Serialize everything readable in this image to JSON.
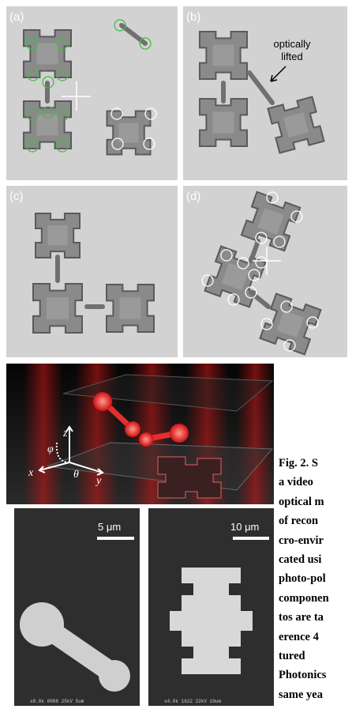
{
  "panels": [
    {
      "label": "(a)"
    },
    {
      "label": "(b)",
      "annotation": [
        "optically",
        "lifted"
      ]
    },
    {
      "label": "(c)"
    },
    {
      "label": "(d)"
    }
  ],
  "render": {
    "axes": {
      "z": "z",
      "phi": "φ",
      "x": "x",
      "theta": "θ",
      "y": "y"
    }
  },
  "sem": [
    {
      "scale": "5 μm",
      "footer": "x8.0k 0008 25kV 5um"
    },
    {
      "scale": "10 μm",
      "footer": "x4.0k 1622 22kV 10um"
    }
  ],
  "caption": {
    "lines": [
      "Fig. 2. S",
      "a video",
      "optical m",
      "of recon",
      "cro-envir",
      "cated usi",
      "photo-pol",
      "componen",
      "tos are ta",
      "erence 4",
      "tured",
      "Photonics",
      "same yea"
    ]
  }
}
